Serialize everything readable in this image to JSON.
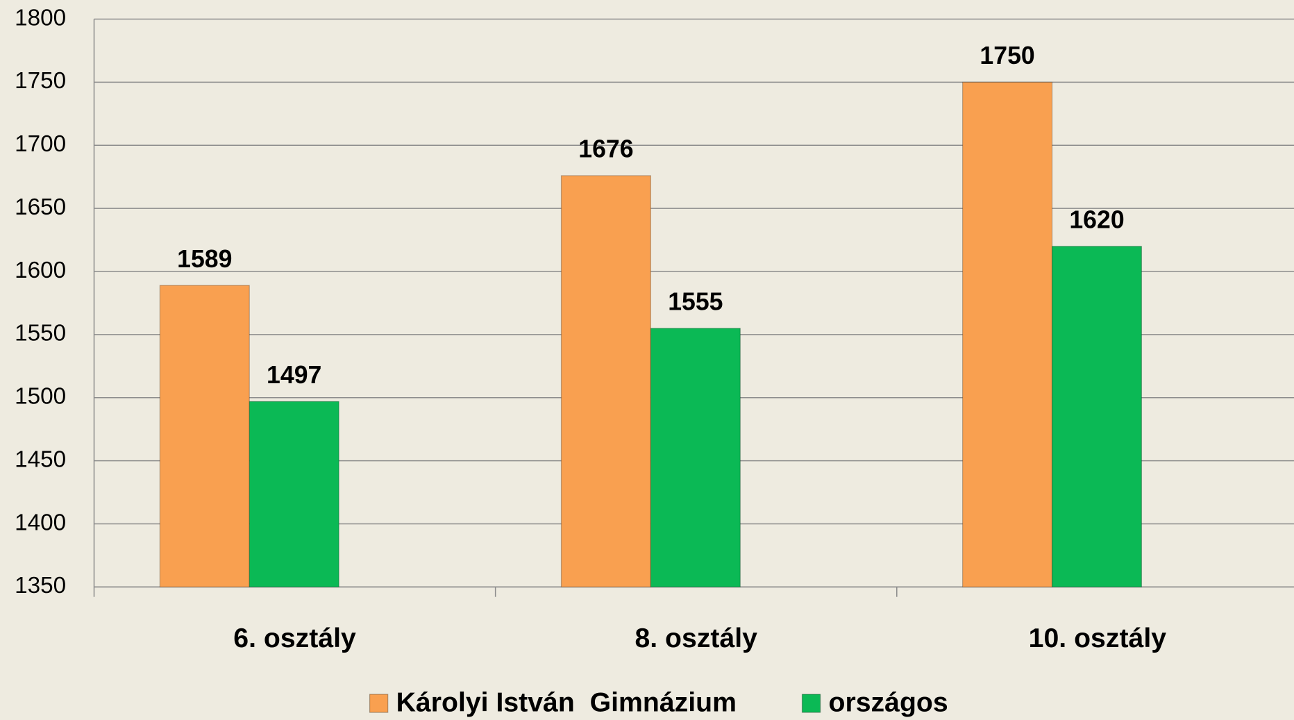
{
  "chart_data": {
    "type": "bar",
    "categories": [
      "6. osztály",
      "8. osztály",
      "10. osztály"
    ],
    "series": [
      {
        "name": "Károlyi István  Gimnázium",
        "color": "#f9a050",
        "values": [
          1589,
          1676,
          1750
        ]
      },
      {
        "name": "országos",
        "color": "#0bb955",
        "values": [
          1497,
          1555,
          1620
        ]
      }
    ],
    "ylim": [
      1350,
      1800
    ],
    "yticks": [
      1350,
      1400,
      1450,
      1500,
      1550,
      1600,
      1650,
      1700,
      1750,
      1800
    ],
    "grid": true,
    "legend": "bottom"
  }
}
